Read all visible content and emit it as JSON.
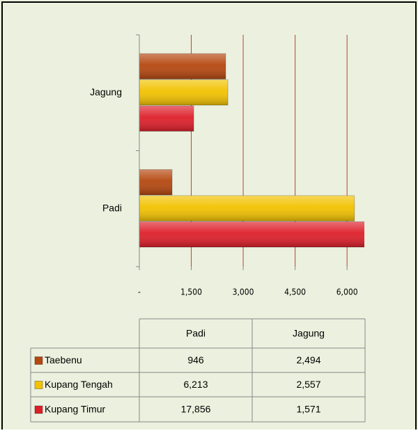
{
  "chart_data": {
    "type": "bar",
    "orientation": "horizontal",
    "categories": [
      "Padi",
      "Jagung"
    ],
    "series": [
      {
        "name": "Taebenu",
        "color": "#b5470f",
        "values": [
          946,
          2494
        ],
        "value_labels": [
          "946",
          "2,494"
        ]
      },
      {
        "name": "Kupang Tengah",
        "color": "#f2c200",
        "values": [
          6213,
          2557
        ],
        "value_labels": [
          "6,213",
          "2,557"
        ]
      },
      {
        "name": "Kupang Timur",
        "color": "#de1f2a",
        "values": [
          17856,
          1571
        ],
        "value_labels": [
          "17,856",
          "1,571"
        ]
      }
    ],
    "xlim": [
      0,
      6500
    ],
    "xticks": [
      {
        "value": 0,
        "label": "-"
      },
      {
        "value": 1500,
        "label": "1,500"
      },
      {
        "value": 3000,
        "label": "3,000"
      },
      {
        "value": 4500,
        "label": "4,500"
      },
      {
        "value": 6000,
        "label": "6,000"
      }
    ],
    "grid": true,
    "data_table": true
  }
}
